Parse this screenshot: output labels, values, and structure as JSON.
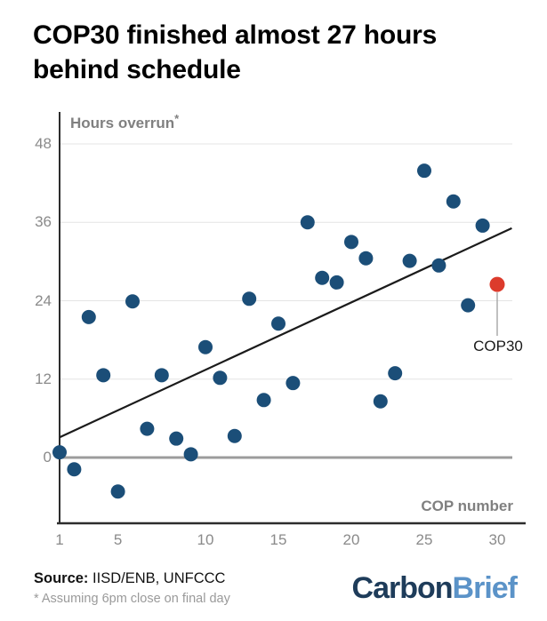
{
  "title": "COP30 finished almost 27 hours behind schedule",
  "chart_data": {
    "type": "scatter",
    "title": "COP30 finished almost 27 hours behind schedule",
    "xlabel": "COP number",
    "ylabel": "Hours overrun",
    "ylabel_suffix": "*",
    "ylim": [
      -10,
      52
    ],
    "grid": "horizontal",
    "legend": "none",
    "yticks": [
      {
        "value": 0,
        "label": "0"
      },
      {
        "value": 12,
        "label": "12"
      },
      {
        "value": 24,
        "label": "24"
      },
      {
        "value": 36,
        "label": "36"
      },
      {
        "value": 48,
        "label": "48"
      }
    ],
    "xticks": [
      {
        "pos": 1,
        "label": "1"
      },
      {
        "pos": 5,
        "label": "5"
      },
      {
        "pos": 11,
        "label": "10"
      },
      {
        "pos": 16,
        "label": "15"
      },
      {
        "pos": 21,
        "label": "20"
      },
      {
        "pos": 26,
        "label": "25"
      },
      {
        "pos": 31,
        "label": "30"
      }
    ],
    "points": [
      {
        "pos": 1,
        "hours": 0.8
      },
      {
        "pos": 2,
        "hours": -1.8
      },
      {
        "pos": 3,
        "hours": 21.5
      },
      {
        "pos": 4,
        "hours": 12.6
      },
      {
        "pos": 5,
        "hours": -5.2
      },
      {
        "pos": 6,
        "hours": 23.9
      },
      {
        "pos": 7,
        "hours": 4.4
      },
      {
        "pos": 8,
        "hours": 12.6
      },
      {
        "pos": 9,
        "hours": 2.9
      },
      {
        "pos": 10,
        "hours": 0.5
      },
      {
        "pos": 11,
        "hours": 16.9
      },
      {
        "pos": 12,
        "hours": 12.2
      },
      {
        "pos": 13,
        "hours": 3.3
      },
      {
        "pos": 14,
        "hours": 24.3
      },
      {
        "pos": 15,
        "hours": 8.8
      },
      {
        "pos": 16,
        "hours": 20.5
      },
      {
        "pos": 17,
        "hours": 11.4
      },
      {
        "pos": 18,
        "hours": 36.0
      },
      {
        "pos": 19,
        "hours": 27.5
      },
      {
        "pos": 20,
        "hours": 26.8
      },
      {
        "pos": 21,
        "hours": 33.0
      },
      {
        "pos": 22,
        "hours": 30.5
      },
      {
        "pos": 23,
        "hours": 8.6
      },
      {
        "pos": 24,
        "hours": 12.9
      },
      {
        "pos": 25,
        "hours": 30.1
      },
      {
        "pos": 26,
        "hours": 43.9
      },
      {
        "pos": 27,
        "hours": 29.4
      },
      {
        "pos": 28,
        "hours": 39.2
      },
      {
        "pos": 29,
        "hours": 23.3
      },
      {
        "pos": 30,
        "hours": 35.5
      }
    ],
    "highlight_point": {
      "pos": 31,
      "hours": 26.5,
      "label": "COP30"
    },
    "trend_line": {
      "from": {
        "pos": 1,
        "hours": 3.1
      },
      "to": {
        "pos": 32,
        "hours": 35.1
      }
    },
    "zero_line": true,
    "colors": {
      "point": "#1b4e78",
      "highlight": "#dc3b2c",
      "trend": "#1b1b1b",
      "grid": "#e4e4e4",
      "zero_line": "#9c9c9c",
      "axis": "#2d2d2d",
      "leader": "#aaaaaa",
      "tick_text": "#8a8a8a"
    }
  },
  "annotation": {
    "cop30_label": "COP30"
  },
  "source": {
    "label": "Source:",
    "value": " IISD/ENB, UNFCCC"
  },
  "footnote": "* Assuming 6pm close on final day",
  "logo": {
    "part1": "Carbon",
    "part2": "Brief",
    "part1_color": "#1e3c5a",
    "part2_color": "#5b93c8"
  }
}
